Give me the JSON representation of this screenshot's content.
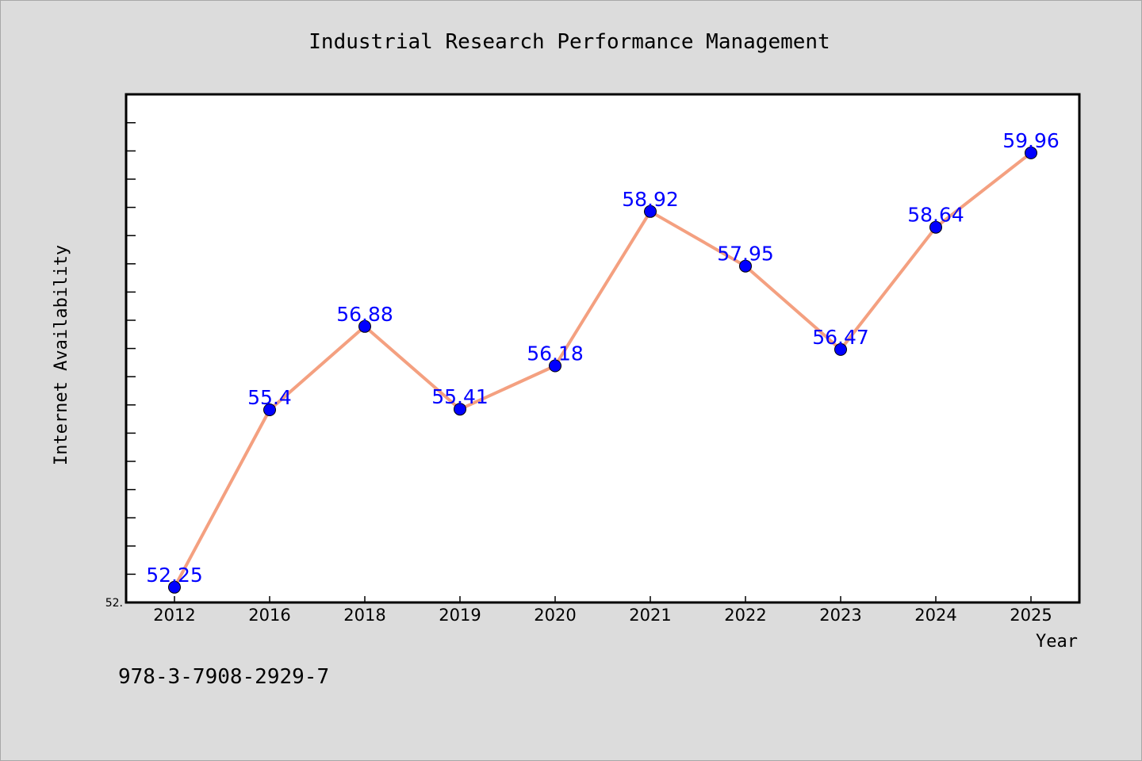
{
  "chart_data": {
    "type": "line",
    "title": "Industrial Research Performance Management",
    "xlabel": "Year",
    "ylabel": "Internet Availability",
    "categories": [
      "2012",
      "2016",
      "2018",
      "2019",
      "2020",
      "2021",
      "2022",
      "2023",
      "2024",
      "2025"
    ],
    "series": [
      {
        "values": [
          52.25,
          55.4,
          56.88,
          55.41,
          56.18,
          58.92,
          57.95,
          56.47,
          58.64,
          59.96
        ],
        "data_labels": [
          "52.25",
          "55.4",
          "56.88",
          "55.41",
          "56.18",
          "58.92",
          "57.95",
          "56.47",
          "58.64",
          "59.96"
        ],
        "line_color": "#f4a080",
        "marker_color": "#0000ff"
      }
    ],
    "ylim": [
      51.98,
      61.0
    ],
    "y_tick_label": "52.",
    "grid": false,
    "legend": "none",
    "plot_background": "#ffffff",
    "figure_background": "#dcdcdc"
  },
  "footer": {
    "identifier": "978-3-7908-2929-7"
  }
}
